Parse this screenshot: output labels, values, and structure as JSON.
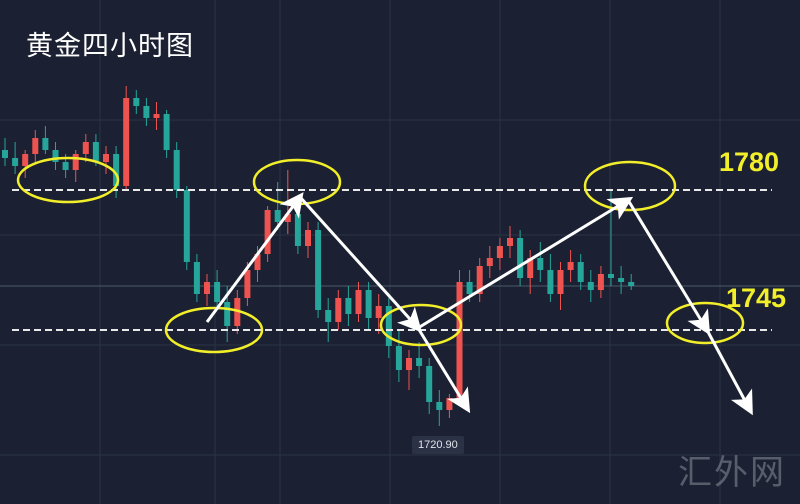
{
  "title": "黄金四小时图",
  "watermark": "汇外网",
  "chart_data": {
    "type": "candlestick",
    "title": "黄金四小时图",
    "colors": {
      "up": "#ef5350",
      "down": "#26a69a",
      "background": "#1b2132",
      "annotation": "#f2ee2a",
      "arrow": "#ffffff"
    },
    "grid": true,
    "ylim": [
      1718,
      1815
    ],
    "levels": [
      {
        "label": "1780",
        "value": 1780,
        "style": "dashed"
      },
      {
        "label": "1745",
        "value": 1745,
        "style": "dashed"
      }
    ],
    "low_marker": {
      "label": "1720.90",
      "value": 1720.9
    },
    "current_price": 1756,
    "candles_ohlc": [
      [
        1790,
        1793,
        1786,
        1788
      ],
      [
        1788,
        1792,
        1784,
        1786
      ],
      [
        1786,
        1790,
        1783,
        1789
      ],
      [
        1789,
        1795,
        1787,
        1793
      ],
      [
        1793,
        1796,
        1789,
        1790
      ],
      [
        1790,
        1792,
        1785,
        1787
      ],
      [
        1787,
        1789,
        1783,
        1785
      ],
      [
        1785,
        1790,
        1782,
        1789
      ],
      [
        1789,
        1794,
        1787,
        1792
      ],
      [
        1792,
        1794,
        1786,
        1787
      ],
      [
        1787,
        1791,
        1784,
        1789
      ],
      [
        1789,
        1791,
        1778,
        1781
      ],
      [
        1781,
        1806,
        1780,
        1803
      ],
      [
        1803,
        1805,
        1799,
        1801
      ],
      [
        1801,
        1803,
        1796,
        1798
      ],
      [
        1798,
        1802,
        1795,
        1799
      ],
      [
        1799,
        1800,
        1788,
        1790
      ],
      [
        1790,
        1792,
        1778,
        1780
      ],
      [
        1780,
        1781,
        1760,
        1762
      ],
      [
        1762,
        1764,
        1752,
        1754
      ],
      [
        1754,
        1759,
        1751,
        1757
      ],
      [
        1757,
        1760,
        1750,
        1752
      ],
      [
        1752,
        1756,
        1742,
        1746
      ],
      [
        1746,
        1755,
        1744,
        1753
      ],
      [
        1753,
        1762,
        1751,
        1760
      ],
      [
        1760,
        1766,
        1757,
        1764
      ],
      [
        1764,
        1776,
        1762,
        1775
      ],
      [
        1775,
        1782,
        1770,
        1772
      ],
      [
        1772,
        1785,
        1769,
        1774
      ],
      [
        1774,
        1776,
        1764,
        1766
      ],
      [
        1766,
        1772,
        1763,
        1770
      ],
      [
        1770,
        1772,
        1748,
        1750
      ],
      [
        1750,
        1753,
        1742,
        1747
      ],
      [
        1747,
        1755,
        1745,
        1753
      ],
      [
        1753,
        1756,
        1746,
        1749
      ],
      [
        1749,
        1757,
        1747,
        1755
      ],
      [
        1755,
        1757,
        1745,
        1748
      ],
      [
        1748,
        1754,
        1744,
        1751
      ],
      [
        1751,
        1753,
        1738,
        1741
      ],
      [
        1741,
        1745,
        1732,
        1735
      ],
      [
        1735,
        1740,
        1730,
        1738
      ],
      [
        1738,
        1742,
        1733,
        1736
      ],
      [
        1736,
        1738,
        1724,
        1727
      ],
      [
        1727,
        1730,
        1721,
        1725
      ],
      [
        1725,
        1729,
        1723,
        1728
      ],
      [
        1728,
        1760,
        1727,
        1757
      ],
      [
        1757,
        1760,
        1752,
        1754
      ],
      [
        1754,
        1763,
        1752,
        1761
      ],
      [
        1761,
        1766,
        1758,
        1763
      ],
      [
        1763,
        1768,
        1760,
        1766
      ],
      [
        1766,
        1771,
        1763,
        1768
      ],
      [
        1768,
        1770,
        1756,
        1758
      ],
      [
        1758,
        1765,
        1754,
        1763
      ],
      [
        1763,
        1767,
        1757,
        1760
      ],
      [
        1760,
        1764,
        1752,
        1754
      ],
      [
        1754,
        1762,
        1750,
        1760
      ],
      [
        1760,
        1765,
        1757,
        1762
      ],
      [
        1762,
        1764,
        1755,
        1757
      ],
      [
        1757,
        1760,
        1752,
        1755
      ],
      [
        1755,
        1761,
        1753,
        1759
      ],
      [
        1759,
        1780,
        1756,
        1758
      ],
      [
        1758,
        1761,
        1754,
        1757
      ],
      [
        1757,
        1759,
        1755,
        1756
      ]
    ],
    "highlight_circles_at_candles": [
      5,
      28,
      22,
      40,
      60
    ],
    "projected_path": [
      {
        "candle": 22,
        "price": 1747
      },
      {
        "candle": 29,
        "price": 1778
      },
      {
        "candle": 40,
        "price": 1746
      },
      {
        "candle": 44,
        "price": 1726
      }
    ],
    "projected_path_2": [
      {
        "candle": 40,
        "price": 1746
      },
      {
        "candle": 61,
        "price": 1775
      },
      {
        "candle": 69,
        "price": 1745
      },
      {
        "candle": 73,
        "price": 1725
      }
    ]
  }
}
